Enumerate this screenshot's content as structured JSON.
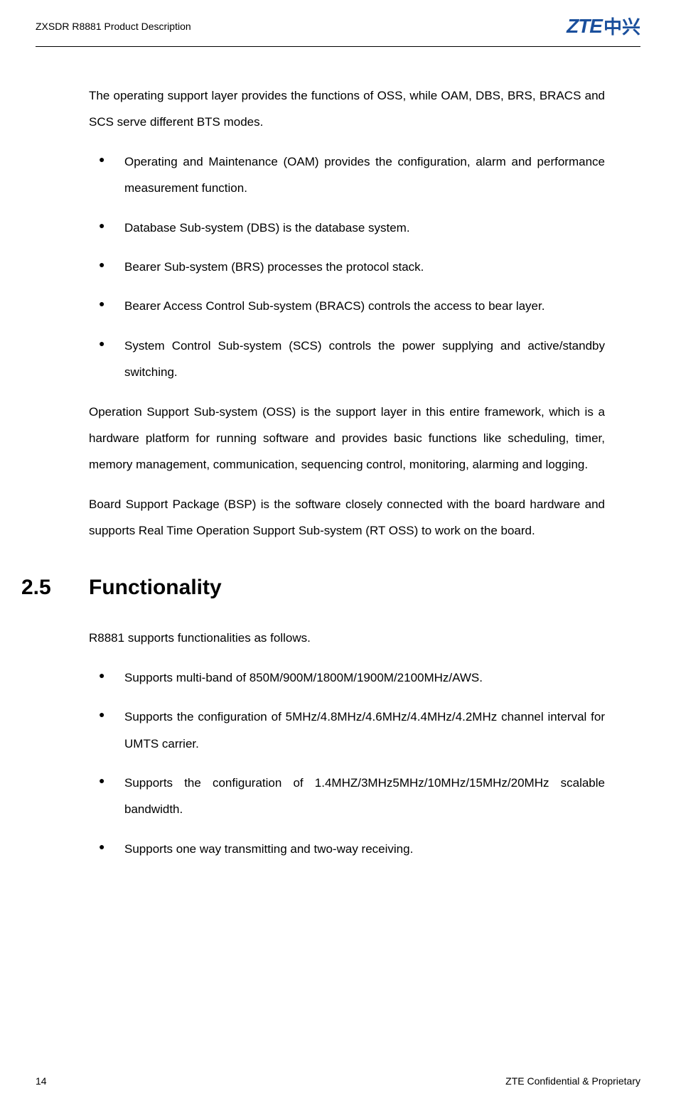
{
  "header": {
    "title": "ZXSDR R8881 Product Description",
    "logo_text": "ZTE",
    "logo_cn": "中兴"
  },
  "body": {
    "intro": "The operating support layer provides the functions of OSS, while OAM, DBS, BRS, BRACS and SCS serve different BTS modes.",
    "bullets1": [
      "Operating and Maintenance (OAM) provides the configuration, alarm and performance measurement function.",
      "Database Sub-system (DBS) is the database system.",
      "Bearer Sub-system (BRS) processes the protocol stack.",
      "Bearer Access Control Sub-system (BRACS) controls the access to bear layer.",
      "System Control Sub-system (SCS) controls the power supplying and active/standby switching."
    ],
    "para2": "Operation Support Sub-system (OSS) is the support layer in this entire framework, which is a hardware platform for running software and provides basic functions like scheduling, timer, memory management, communication, sequencing control, monitoring, alarming and logging.",
    "para3": "Board Support Package (BSP) is the software closely connected with the board hardware and supports Real Time Operation Support Sub-system (RT OSS) to work on the board.",
    "section": {
      "number": "2.5",
      "title": "Functionality"
    },
    "para4": "R8881 supports functionalities as follows.",
    "bullets2": [
      "Supports multi-band of 850M/900M/1800M/1900M/2100MHz/AWS.",
      "Supports the configuration of 5MHz/4.8MHz/4.6MHz/4.4MHz/4.2MHz channel interval for UMTS carrier.",
      "Supports the configuration of 1.4MHZ/3MHz5MHz/10MHz/15MHz/20MHz scalable bandwidth.",
      "Supports one way transmitting and two-way receiving."
    ]
  },
  "footer": {
    "page_number": "14",
    "copyright": "ZTE Confidential & Proprietary"
  },
  "colors": {
    "text": "#000000",
    "logo": "#1a4f9c",
    "background": "#ffffff"
  }
}
